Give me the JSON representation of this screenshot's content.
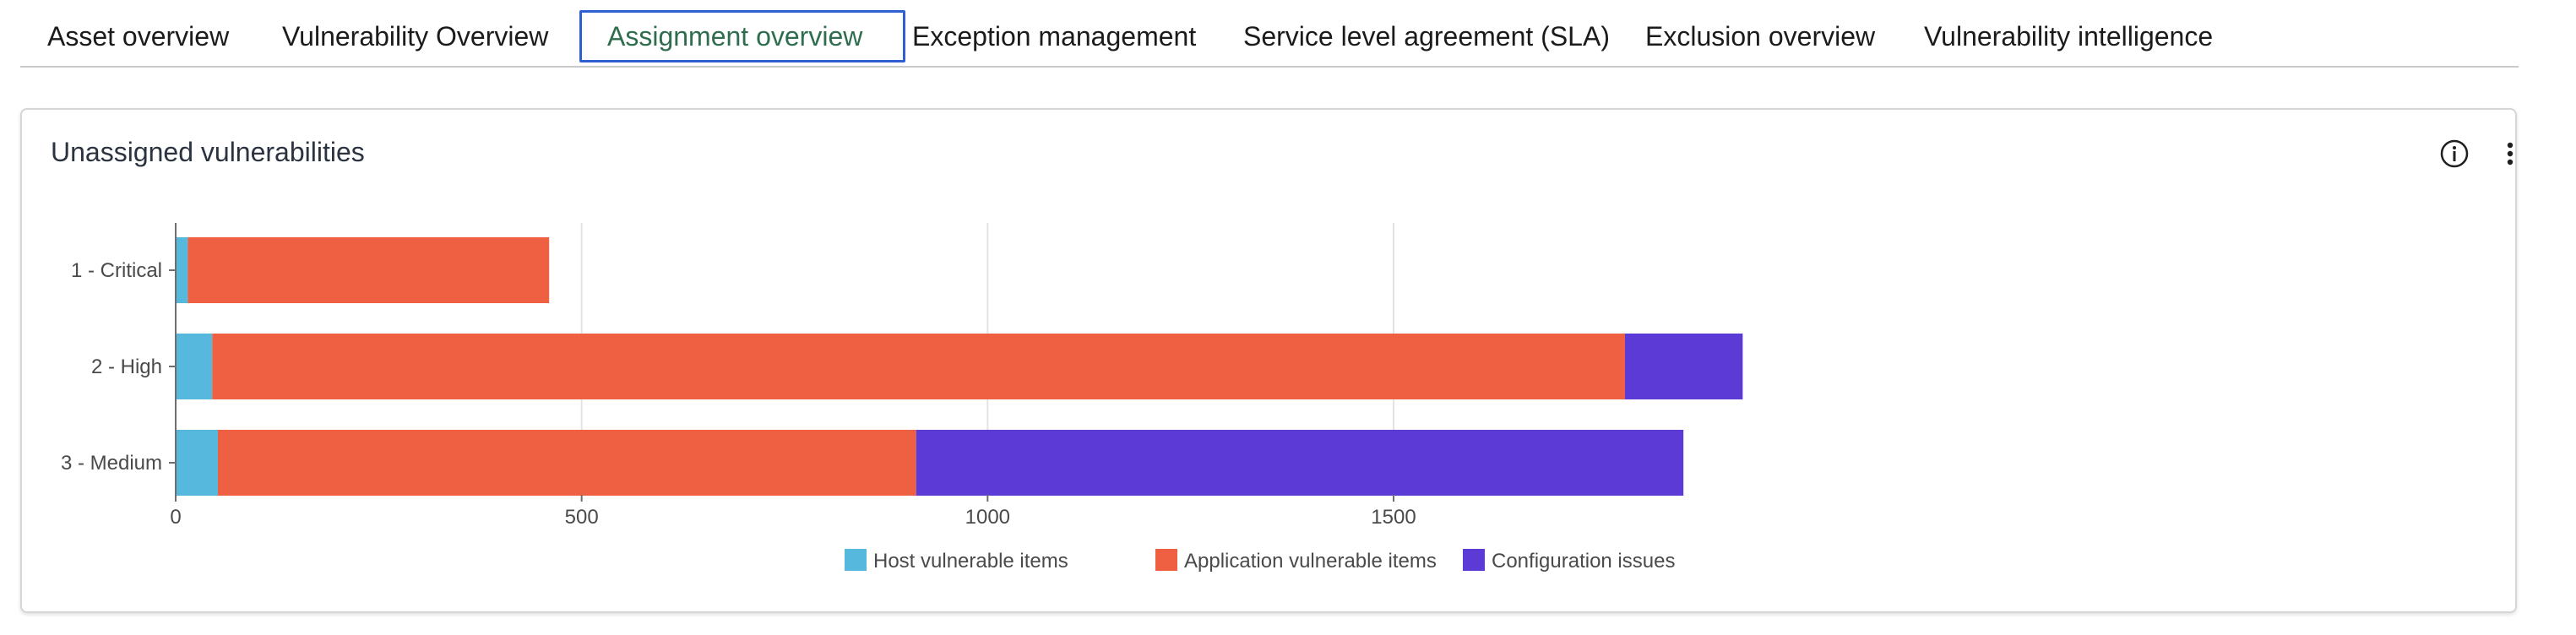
{
  "tabs": [
    {
      "label": "Asset overview",
      "active": false
    },
    {
      "label": "Vulnerability Overview",
      "active": false
    },
    {
      "label": "Assignment overview",
      "active": true
    },
    {
      "label": "Exception management",
      "active": false
    },
    {
      "label": "Service level agreement (SLA)",
      "active": false
    },
    {
      "label": "Exclusion overview",
      "active": false
    },
    {
      "label": "Vulnerability intelligence",
      "active": false
    }
  ],
  "card": {
    "title": "Unassigned vulnerabilities",
    "info_icon": "info-icon",
    "more_icon": "more-vertical-icon"
  },
  "colors": {
    "host": "#56b8dc",
    "application": "#ee6041",
    "configuration": "#5b3ad6",
    "active_tab_text": "#2e6d4e",
    "active_tab_border": "#2f5fd0"
  },
  "chart_data": {
    "type": "bar",
    "orientation": "horizontal",
    "stacked": true,
    "categories": [
      "1 - Critical",
      "2 - High",
      "3 - Medium"
    ],
    "series": [
      {
        "name": "Host vulnerable items",
        "values": [
          15,
          45,
          52
        ]
      },
      {
        "name": "Application vulnerable items",
        "values": [
          445,
          1740,
          860
        ]
      },
      {
        "name": "Configuration issues",
        "values": [
          0,
          145,
          945
        ]
      }
    ],
    "xlim": [
      0,
      1930
    ],
    "xticks": [
      "0",
      "500",
      "1000",
      "1500"
    ],
    "xtick_values": [
      0,
      500,
      1000,
      1500
    ],
    "grid": true,
    "legend": "bottom-center"
  }
}
